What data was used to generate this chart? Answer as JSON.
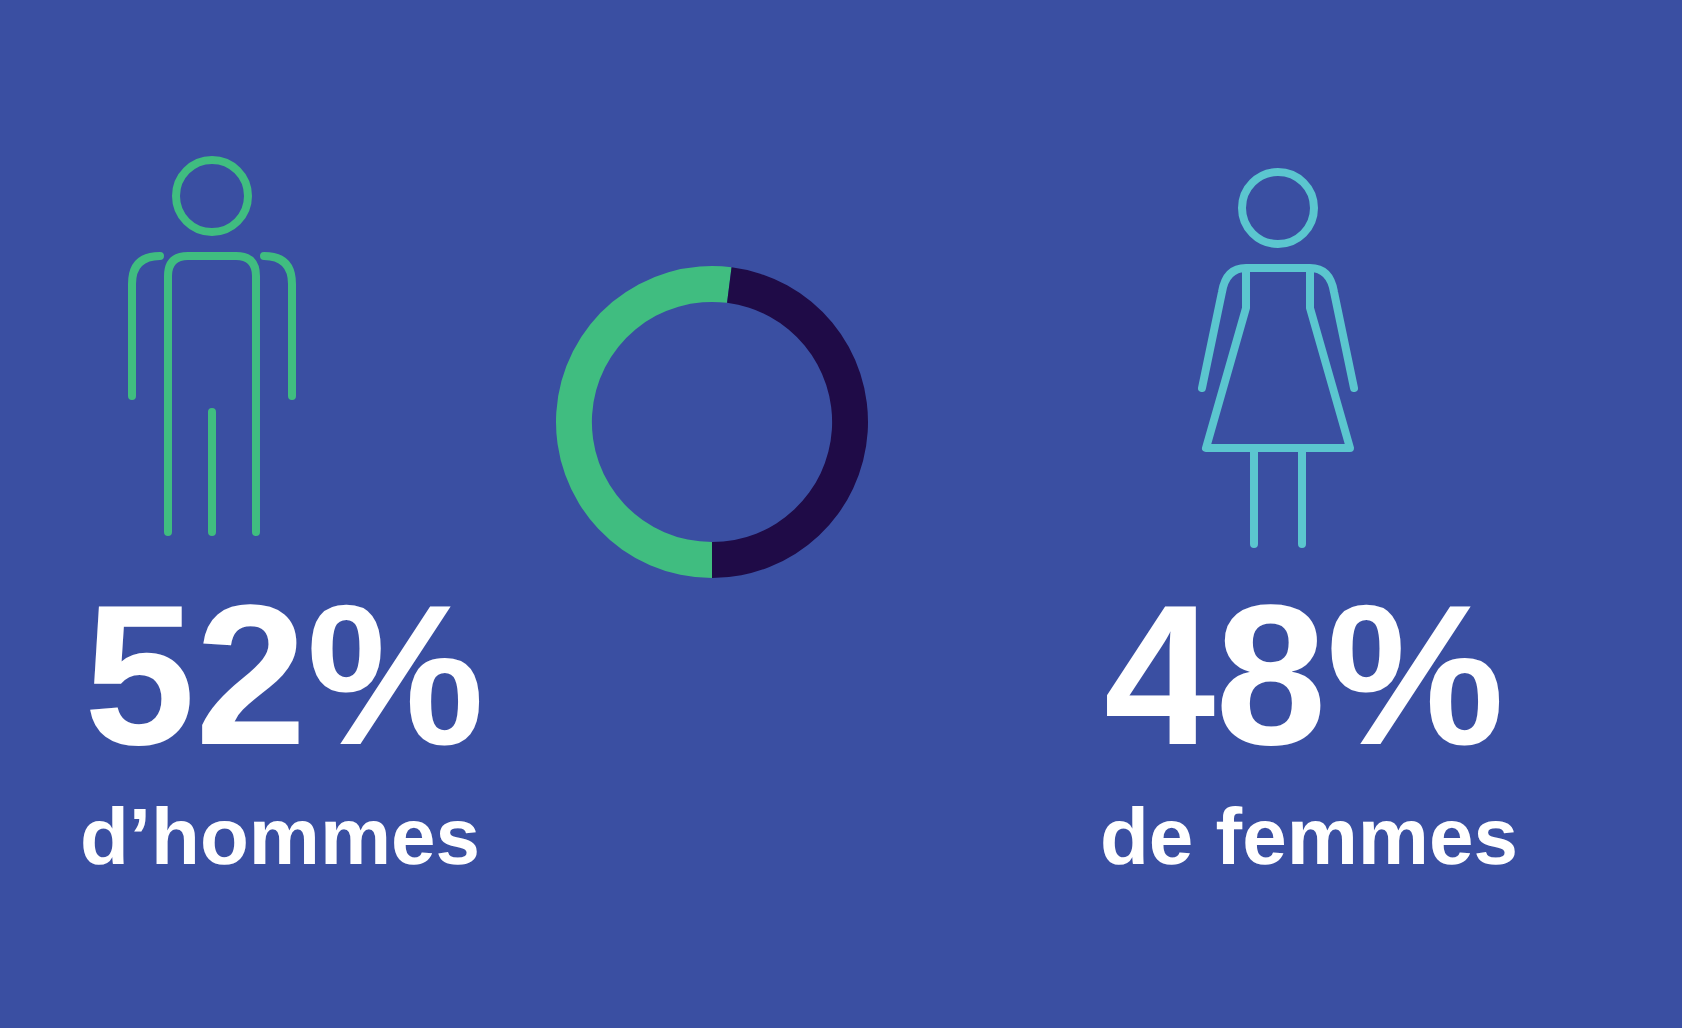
{
  "chart_data": {
    "type": "donut",
    "categories": [
      "d’hommes",
      "de femmes"
    ],
    "values": [
      52,
      48
    ],
    "colors": [
      "#40bd80",
      "#1f0b47"
    ],
    "value_labels": [
      "52%",
      "48%"
    ],
    "legend": false
  }
}
